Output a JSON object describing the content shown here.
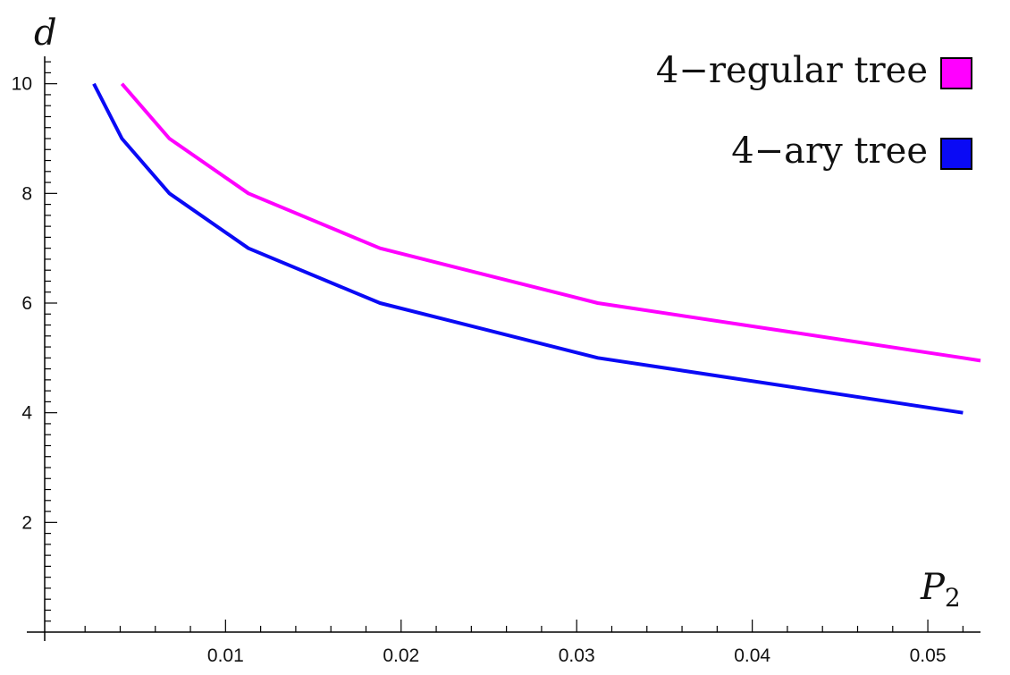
{
  "chart_data": {
    "type": "line",
    "xlabel": "P",
    "xlabel_subscript": "2",
    "ylabel": "d",
    "xlim": [
      -0.0003,
      0.053
    ],
    "ylim": [
      0,
      10.5
    ],
    "x_ticks_major": [
      "0.01",
      "0.02",
      "0.03",
      "0.04",
      "0.05"
    ],
    "x_ticks_major_values": [
      0.01,
      0.02,
      0.03,
      0.04,
      0.05
    ],
    "y_ticks_major": [
      "2",
      "4",
      "6",
      "8",
      "10"
    ],
    "y_ticks_major_values": [
      2,
      4,
      6,
      8,
      10
    ],
    "grid": false,
    "legend_position": "top-right",
    "series": [
      {
        "name": "4−regular tree",
        "color": "#ff00ff",
        "points": [
          [
            0.0041,
            10
          ],
          [
            0.0068,
            9
          ],
          [
            0.0113,
            8
          ],
          [
            0.0188,
            7
          ],
          [
            0.0312,
            6
          ],
          [
            0.052,
            5
          ],
          [
            0.053,
            4.95
          ]
        ]
      },
      {
        "name": "4−ary tree",
        "color": "#0a0af5",
        "points": [
          [
            0.0025,
            10
          ],
          [
            0.0041,
            9
          ],
          [
            0.0068,
            8
          ],
          [
            0.0113,
            7
          ],
          [
            0.0188,
            6
          ],
          [
            0.0312,
            5
          ],
          [
            0.052,
            4
          ]
        ]
      }
    ]
  }
}
